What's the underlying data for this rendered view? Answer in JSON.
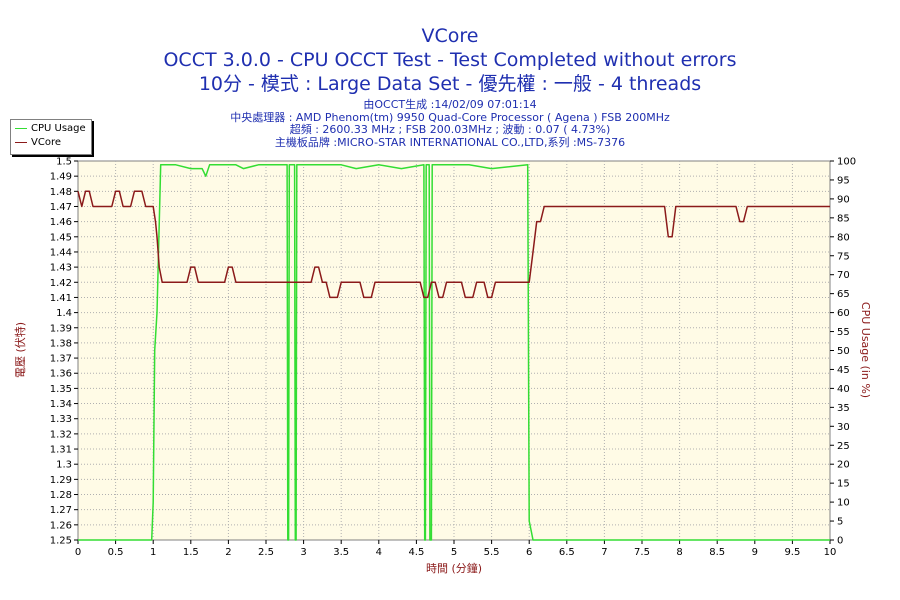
{
  "header": {
    "title": "VCore",
    "line2": "OCCT 3.0.0 - CPU OCCT Test - Test Completed without errors",
    "line3": "10分 - 模式 : Large Data Set - 優先權 : 一般 - 4 threads",
    "info": [
      "由OCCT生成 :14/02/09 07:01:14",
      "中央處理器 : AMD Phenom(tm) 9950 Quad-Core Processor ( Agena ) FSB 200MHz",
      "超頻 : 2600.33 MHz ; FSB 200.03MHz ; 波動 : 0.07 ( 4.73%)",
      "主機板品牌 :MICRO-STAR INTERNATIONAL CO.,LTD,系列 :MS-7376"
    ]
  },
  "colors": {
    "cpu": "#33dd33",
    "vcore": "#8b1a1a",
    "plot_bg": "#fffbe6",
    "title": "#1f2fb0",
    "grid": "#b0b0b0"
  },
  "chart_data": {
    "type": "line",
    "xlabel": "時間 (分鐘)",
    "ylabel_left": "電壓 (伏特)",
    "ylabel_right": "CPU Usage (in %)",
    "xlim": [
      0,
      10
    ],
    "ylim_left": [
      1.25,
      1.5
    ],
    "ylim_right": [
      0,
      100
    ],
    "x_ticks": [
      "0",
      "0.5",
      "1",
      "1.5",
      "2",
      "2.5",
      "3",
      "3.5",
      "4",
      "4.5",
      "5",
      "5.5",
      "6",
      "6.5",
      "7",
      "7.5",
      "8",
      "8.5",
      "9",
      "9.5",
      "10"
    ],
    "y_ticks_left": [
      "1.25",
      "1.26",
      "1.27",
      "1.28",
      "1.29",
      "1.3",
      "1.31",
      "1.32",
      "1.33",
      "1.34",
      "1.35",
      "1.36",
      "1.37",
      "1.38",
      "1.39",
      "1.4",
      "1.41",
      "1.42",
      "1.43",
      "1.44",
      "1.45",
      "1.46",
      "1.47",
      "1.48",
      "1.49",
      "1.5"
    ],
    "y_ticks_right": [
      "0",
      "5",
      "10",
      "15",
      "20",
      "25",
      "30",
      "35",
      "40",
      "45",
      "50",
      "55",
      "60",
      "65",
      "70",
      "75",
      "80",
      "85",
      "90",
      "95",
      "100"
    ],
    "grid": true,
    "legend": "top-left",
    "series": [
      {
        "name": "CPU Usage",
        "axis": "right",
        "points": [
          [
            0,
            0
          ],
          [
            0.98,
            0
          ],
          [
            1.0,
            10
          ],
          [
            1.02,
            50
          ],
          [
            1.05,
            60
          ],
          [
            1.1,
            99
          ],
          [
            1.3,
            99
          ],
          [
            1.5,
            98
          ],
          [
            1.65,
            98
          ],
          [
            1.7,
            96
          ],
          [
            1.75,
            99
          ],
          [
            2.1,
            99
          ],
          [
            2.2,
            98
          ],
          [
            2.4,
            99
          ],
          [
            2.78,
            99
          ],
          [
            2.79,
            0
          ],
          [
            2.8,
            0
          ],
          [
            2.81,
            99
          ],
          [
            2.88,
            99
          ],
          [
            2.89,
            0
          ],
          [
            2.9,
            0
          ],
          [
            2.91,
            99
          ],
          [
            3.5,
            99
          ],
          [
            3.7,
            98
          ],
          [
            4.0,
            99
          ],
          [
            4.3,
            98
          ],
          [
            4.6,
            99
          ],
          [
            4.61,
            0
          ],
          [
            4.62,
            0
          ],
          [
            4.63,
            99
          ],
          [
            4.67,
            99
          ],
          [
            4.68,
            0
          ],
          [
            4.7,
            0
          ],
          [
            4.71,
            99
          ],
          [
            5.2,
            99
          ],
          [
            5.5,
            98
          ],
          [
            5.98,
            99
          ],
          [
            6.0,
            5
          ],
          [
            6.03,
            2
          ],
          [
            6.05,
            0
          ],
          [
            10,
            0
          ]
        ]
      },
      {
        "name": "VCore",
        "axis": "left",
        "points": [
          [
            0,
            1.48
          ],
          [
            0.05,
            1.47
          ],
          [
            0.1,
            1.48
          ],
          [
            0.15,
            1.48
          ],
          [
            0.2,
            1.47
          ],
          [
            0.45,
            1.47
          ],
          [
            0.5,
            1.48
          ],
          [
            0.55,
            1.48
          ],
          [
            0.6,
            1.47
          ],
          [
            0.7,
            1.47
          ],
          [
            0.75,
            1.48
          ],
          [
            0.85,
            1.48
          ],
          [
            0.9,
            1.47
          ],
          [
            1.0,
            1.47
          ],
          [
            1.03,
            1.46
          ],
          [
            1.05,
            1.45
          ],
          [
            1.08,
            1.43
          ],
          [
            1.12,
            1.42
          ],
          [
            1.45,
            1.42
          ],
          [
            1.5,
            1.43
          ],
          [
            1.55,
            1.43
          ],
          [
            1.6,
            1.42
          ],
          [
            1.95,
            1.42
          ],
          [
            2.0,
            1.43
          ],
          [
            2.05,
            1.43
          ],
          [
            2.1,
            1.42
          ],
          [
            3.1,
            1.42
          ],
          [
            3.15,
            1.43
          ],
          [
            3.2,
            1.43
          ],
          [
            3.25,
            1.42
          ],
          [
            3.3,
            1.42
          ],
          [
            3.35,
            1.41
          ],
          [
            3.45,
            1.41
          ],
          [
            3.5,
            1.42
          ],
          [
            3.75,
            1.42
          ],
          [
            3.8,
            1.41
          ],
          [
            3.9,
            1.41
          ],
          [
            3.95,
            1.42
          ],
          [
            4.55,
            1.42
          ],
          [
            4.6,
            1.41
          ],
          [
            4.65,
            1.41
          ],
          [
            4.7,
            1.42
          ],
          [
            4.75,
            1.42
          ],
          [
            4.8,
            1.41
          ],
          [
            4.85,
            1.41
          ],
          [
            4.9,
            1.42
          ],
          [
            5.1,
            1.42
          ],
          [
            5.15,
            1.41
          ],
          [
            5.25,
            1.41
          ],
          [
            5.3,
            1.42
          ],
          [
            5.4,
            1.42
          ],
          [
            5.45,
            1.41
          ],
          [
            5.5,
            1.41
          ],
          [
            5.55,
            1.42
          ],
          [
            6.0,
            1.42
          ],
          [
            6.05,
            1.44
          ],
          [
            6.1,
            1.46
          ],
          [
            6.15,
            1.46
          ],
          [
            6.2,
            1.47
          ],
          [
            7.8,
            1.47
          ],
          [
            7.85,
            1.45
          ],
          [
            7.9,
            1.45
          ],
          [
            7.95,
            1.47
          ],
          [
            8.75,
            1.47
          ],
          [
            8.8,
            1.46
          ],
          [
            8.85,
            1.46
          ],
          [
            8.9,
            1.47
          ],
          [
            10,
            1.47
          ]
        ]
      }
    ]
  }
}
